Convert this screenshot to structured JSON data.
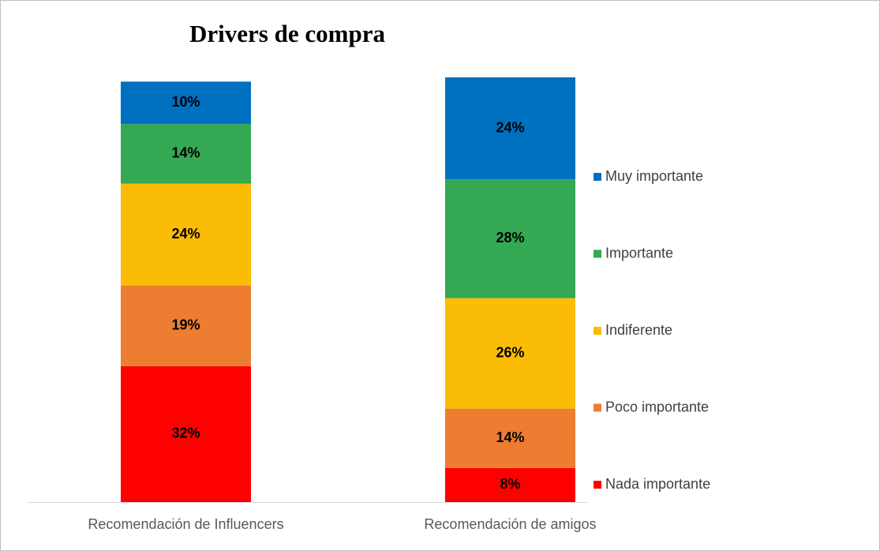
{
  "chart_data": {
    "type": "stacked_bar",
    "title": "Drivers de compra",
    "categories": [
      "Recomendación de Influencers",
      "Recomendación de amigos"
    ],
    "series": [
      {
        "name": "Nada importante",
        "color": "#ff0000",
        "values": [
          32,
          8
        ]
      },
      {
        "name": "Poco importante",
        "color": "#ed7d31",
        "values": [
          19,
          14
        ]
      },
      {
        "name": "Indiferente",
        "color": "#fbbc05",
        "values": [
          24,
          26
        ]
      },
      {
        "name": "Importante",
        "color": "#34a853",
        "values": [
          14,
          28
        ]
      },
      {
        "name": "Muy importante",
        "color": "#0070c0",
        "values": [
          10,
          24
        ]
      }
    ],
    "value_labels": [
      [
        "32%",
        "8%"
      ],
      [
        "19%",
        "14%"
      ],
      [
        "24%",
        "26%"
      ],
      [
        "14%",
        "28%"
      ],
      [
        "10%",
        "24%"
      ]
    ],
    "ylim": [
      0,
      100
    ],
    "legend": "right"
  }
}
